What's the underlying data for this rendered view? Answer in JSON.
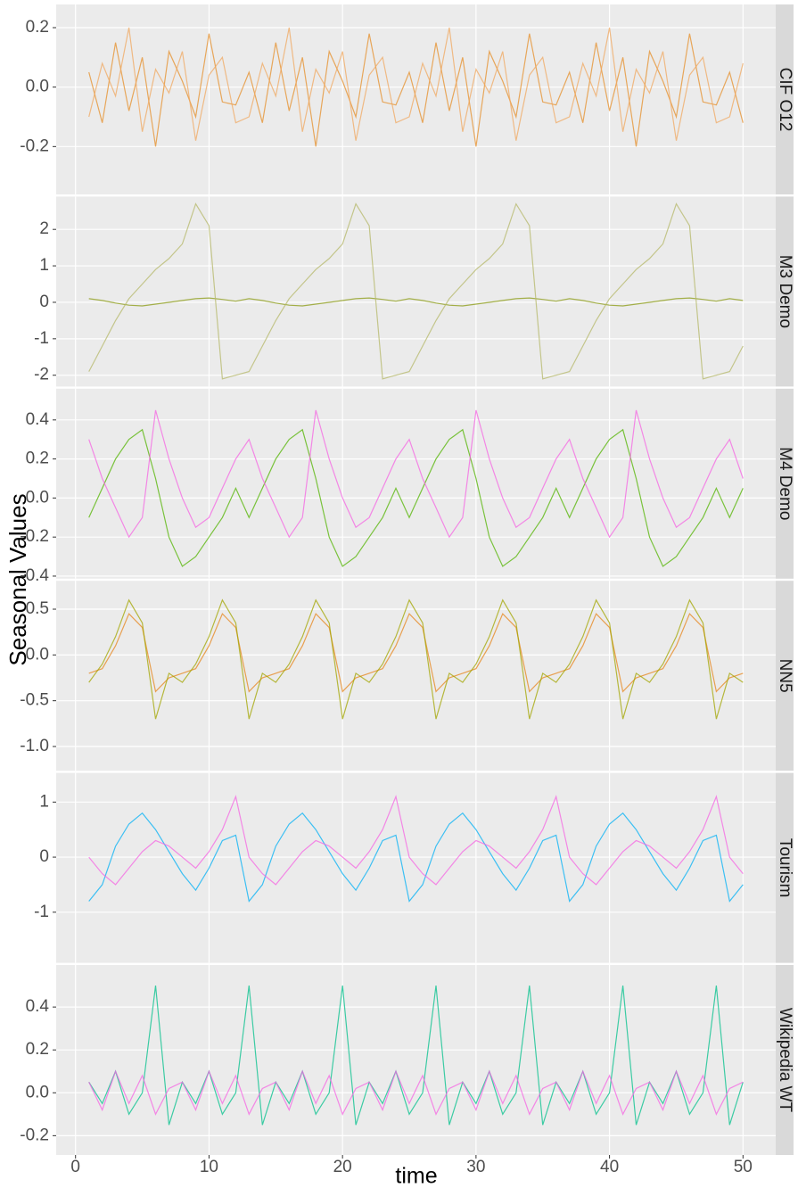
{
  "chart_data": {
    "type": "line",
    "xlabel": "time",
    "ylabel": "Seasonal Values",
    "x": [
      1,
      2,
      3,
      4,
      5,
      6,
      7,
      8,
      9,
      10,
      11,
      12,
      13,
      14,
      15,
      16,
      17,
      18,
      19,
      20,
      21,
      22,
      23,
      24,
      25,
      26,
      27,
      28,
      29,
      30,
      31,
      32,
      33,
      34,
      35,
      36,
      37,
      38,
      39,
      40,
      41,
      42,
      43,
      44,
      45,
      46,
      47,
      48,
      49,
      50
    ],
    "xlim": [
      -1.45,
      52.45
    ],
    "xticks": [
      0,
      10,
      20,
      30,
      40,
      50
    ],
    "grid": true,
    "panels": [
      {
        "strip": "CIF O12",
        "ylim": [
          -0.361,
          0.278
        ],
        "yticks": [
          -0.2,
          {
            "value": 0,
            "label": "0.0"
          },
          0.2
        ],
        "series": [
          {
            "color": "#e58f2a",
            "values": [
              0.05,
              -0.12,
              0.15,
              -0.08,
              0.1,
              -0.2,
              0.12,
              0.02,
              -0.1,
              0.18,
              -0.05,
              -0.06,
              0.05,
              -0.12,
              0.15,
              -0.08,
              0.1,
              -0.2,
              0.12,
              0.02,
              -0.1,
              0.18,
              -0.05,
              -0.06,
              0.05,
              -0.12,
              0.15,
              -0.08,
              0.1,
              -0.2,
              0.12,
              0.02,
              -0.1,
              0.18,
              -0.05,
              -0.06,
              0.05,
              -0.12,
              0.15,
              -0.08,
              0.1,
              -0.2,
              0.12,
              0.02,
              -0.1,
              0.18,
              -0.05,
              -0.06,
              0.05,
              -0.12
            ]
          },
          {
            "color": "#f0a860",
            "values": [
              -0.1,
              0.08,
              -0.03,
              0.2,
              -0.15,
              0.06,
              -0.02,
              0.12,
              -0.18,
              0.04,
              0.1,
              -0.12,
              -0.1,
              0.08,
              -0.03,
              0.2,
              -0.15,
              0.06,
              -0.02,
              0.12,
              -0.18,
              0.04,
              0.1,
              -0.12,
              -0.1,
              0.08,
              -0.03,
              0.2,
              -0.15,
              0.06,
              -0.02,
              0.12,
              -0.18,
              0.04,
              0.1,
              -0.12,
              -0.1,
              0.08,
              -0.03,
              0.2,
              -0.15,
              0.06,
              -0.02,
              0.12,
              -0.18,
              0.04,
              0.1,
              -0.12,
              -0.1,
              0.08
            ]
          }
        ]
      },
      {
        "strip": "M3 Demo",
        "ylim": [
          -2.31,
          2.9
        ],
        "yticks": [
          -2,
          -1,
          0,
          1,
          2
        ],
        "series": [
          {
            "color": "#8a9a10",
            "values": [
              0.1,
              0.05,
              -0.02,
              -0.08,
              -0.1,
              -0.05,
              0,
              0.05,
              0.1,
              0.12,
              0.08,
              0.03,
              0.1,
              0.05,
              -0.02,
              -0.08,
              -0.1,
              -0.05,
              0,
              0.05,
              0.1,
              0.12,
              0.08,
              0.03,
              0.1,
              0.05,
              -0.02,
              -0.08,
              -0.1,
              -0.05,
              0,
              0.05,
              0.1,
              0.12,
              0.08,
              0.03,
              0.1,
              0.05,
              -0.02,
              -0.08,
              -0.1,
              -0.05,
              0,
              0.05,
              0.1,
              0.12,
              0.08,
              0.03,
              0.1,
              0.05
            ]
          },
          {
            "color": "#b5b86a",
            "values": [
              -1.9,
              -1.2,
              -0.5,
              0.1,
              0.5,
              0.9,
              1.2,
              1.6,
              2.7,
              2.1,
              -2.1,
              -2.0,
              -1.9,
              -1.2,
              -0.5,
              0.1,
              0.5,
              0.9,
              1.2,
              1.6,
              2.7,
              2.1,
              -2.1,
              -2.0,
              -1.9,
              -1.2,
              -0.5,
              0.1,
              0.5,
              0.9,
              1.2,
              1.6,
              2.7,
              2.1,
              -2.1,
              -2.0,
              -1.9,
              -1.2,
              -0.5,
              0.1,
              0.5,
              0.9,
              1.2,
              1.6,
              2.7,
              2.1,
              -2.1,
              -2.0,
              -1.9,
              -1.2
            ]
          }
        ]
      },
      {
        "strip": "M4 Demo",
        "ylim": [
          -0.413,
          0.56
        ],
        "yticks": [
          -0.4,
          -0.2,
          {
            "value": 0,
            "label": "0.0"
          },
          0.2,
          0.4
        ],
        "series": [
          {
            "color": "#53b400",
            "values": [
              -0.1,
              0.05,
              0.2,
              0.3,
              0.35,
              0.1,
              -0.2,
              -0.35,
              -0.3,
              -0.2,
              -0.1,
              0.05,
              -0.1,
              0.05,
              0.2,
              0.3,
              0.35,
              0.1,
              -0.2,
              -0.35,
              -0.3,
              -0.2,
              -0.1,
              0.05,
              -0.1,
              0.05,
              0.2,
              0.3,
              0.35,
              0.1,
              -0.2,
              -0.35,
              -0.3,
              -0.2,
              -0.1,
              0.05,
              -0.1,
              0.05,
              0.2,
              0.3,
              0.35,
              0.1,
              -0.2,
              -0.35,
              -0.3,
              -0.2,
              -0.1,
              0.05,
              -0.1,
              0.05
            ]
          },
          {
            "color": "#f564e3",
            "values": [
              0.3,
              0.1,
              -0.05,
              -0.2,
              -0.1,
              0.45,
              0.2,
              0,
              -0.15,
              -0.1,
              0.05,
              0.2,
              0.3,
              0.1,
              -0.05,
              -0.2,
              -0.1,
              0.45,
              0.2,
              0,
              -0.15,
              -0.1,
              0.05,
              0.2,
              0.3,
              0.1,
              -0.05,
              -0.2,
              -0.1,
              0.45,
              0.2,
              0,
              -0.15,
              -0.1,
              0.05,
              0.2,
              0.3,
              0.1,
              -0.05,
              -0.2,
              -0.1,
              0.45,
              0.2,
              0,
              -0.15,
              -0.1,
              0.05,
              0.2,
              0.3,
              0.1
            ]
          }
        ]
      },
      {
        "strip": "NN5",
        "ylim": [
          -1.265,
          0.81
        ],
        "yticks": [
          {
            "value": -1,
            "label": "-1.0"
          },
          -0.5,
          {
            "value": 0,
            "label": "0.0"
          },
          0.5
        ],
        "series": [
          {
            "color": "#e7861b",
            "values": [
              -0.2,
              -0.15,
              0.1,
              0.45,
              0.3,
              -0.4,
              -0.25,
              -0.2,
              -0.15,
              0.1,
              0.45,
              0.3,
              -0.4,
              -0.25,
              -0.2,
              -0.15,
              0.1,
              0.45,
              0.3,
              -0.4,
              -0.25,
              -0.2,
              -0.15,
              0.1,
              0.45,
              0.3,
              -0.4,
              -0.25,
              -0.2,
              -0.15,
              0.1,
              0.45,
              0.3,
              -0.4,
              -0.25,
              -0.2,
              -0.15,
              0.1,
              0.45,
              0.3,
              -0.4,
              -0.25,
              -0.2,
              -0.15,
              0.1,
              0.45,
              0.3,
              -0.4,
              -0.25,
              -0.2
            ]
          },
          {
            "color": "#a3a500",
            "values": [
              -0.3,
              -0.1,
              0.2,
              0.6,
              0.35,
              -0.7,
              -0.2,
              -0.3,
              -0.1,
              0.2,
              0.6,
              0.35,
              -0.7,
              -0.2,
              -0.3,
              -0.1,
              0.2,
              0.6,
              0.35,
              -0.7,
              -0.2,
              -0.3,
              -0.1,
              0.2,
              0.6,
              0.35,
              -0.7,
              -0.2,
              -0.3,
              -0.1,
              0.2,
              0.6,
              0.35,
              -0.7,
              -0.2,
              -0.3,
              -0.1,
              0.2,
              0.6,
              0.35,
              -0.7,
              -0.2,
              -0.3,
              -0.1,
              0.2,
              0.6,
              0.35,
              -0.7,
              -0.2,
              -0.3
            ]
          }
        ]
      },
      {
        "strip": "Tourism",
        "ylim": [
          -1.92,
          1.53
        ],
        "yticks": [
          -1,
          0,
          1
        ],
        "series": [
          {
            "color": "#00b0f6",
            "values": [
              -0.8,
              -0.5,
              0.2,
              0.6,
              0.8,
              0.5,
              0.1,
              -0.3,
              -0.6,
              -0.2,
              0.3,
              0.4,
              -0.8,
              -0.5,
              0.2,
              0.6,
              0.8,
              0.5,
              0.1,
              -0.3,
              -0.6,
              -0.2,
              0.3,
              0.4,
              -0.8,
              -0.5,
              0.2,
              0.6,
              0.8,
              0.5,
              0.1,
              -0.3,
              -0.6,
              -0.2,
              0.3,
              0.4,
              -0.8,
              -0.5,
              0.2,
              0.6,
              0.8,
              0.5,
              0.1,
              -0.3,
              -0.6,
              -0.2,
              0.3,
              0.4,
              -0.8,
              -0.5
            ]
          },
          {
            "color": "#f564e3",
            "values": [
              0,
              -0.3,
              -0.5,
              -0.2,
              0.1,
              0.3,
              0.2,
              0,
              -0.2,
              0.1,
              0.5,
              1.1,
              0,
              -0.3,
              -0.5,
              -0.2,
              0.1,
              0.3,
              0.2,
              0,
              -0.2,
              0.1,
              0.5,
              1.1,
              0,
              -0.3,
              -0.5,
              -0.2,
              0.1,
              0.3,
              0.2,
              0,
              -0.2,
              0.1,
              0.5,
              1.1,
              0,
              -0.3,
              -0.5,
              -0.2,
              0.1,
              0.3,
              0.2,
              0,
              -0.2,
              0.1,
              0.5,
              1.1,
              0,
              -0.3
            ]
          }
        ]
      },
      {
        "strip": "Wikipedia WT",
        "ylim": [
          -0.29,
          0.596
        ],
        "yticks": [
          -0.2,
          {
            "value": 0,
            "label": "0.0"
          },
          0.2,
          0.4
        ],
        "series": [
          {
            "color": "#00c08b",
            "values": [
              0.05,
              -0.05,
              0.1,
              -0.1,
              0,
              0.5,
              -0.15,
              0.05,
              -0.05,
              0.1,
              -0.1,
              0,
              0.5,
              -0.15,
              0.05,
              -0.05,
              0.1,
              -0.1,
              0,
              0.5,
              -0.15,
              0.05,
              -0.05,
              0.1,
              -0.1,
              0,
              0.5,
              -0.15,
              0.05,
              -0.05,
              0.1,
              -0.1,
              0,
              0.5,
              -0.15,
              0.05,
              -0.05,
              0.1,
              -0.1,
              0,
              0.5,
              -0.15,
              0.05,
              -0.05,
              0.1,
              -0.1,
              0,
              0.5,
              -0.15,
              0.05
            ]
          },
          {
            "color": "#f564e3",
            "values": [
              0.05,
              -0.08,
              0.1,
              -0.05,
              0.08,
              -0.1,
              0.02,
              0.05,
              -0.08,
              0.1,
              -0.05,
              0.08,
              -0.1,
              0.02,
              0.05,
              -0.08,
              0.1,
              -0.05,
              0.08,
              -0.1,
              0.02,
              0.05,
              -0.08,
              0.1,
              -0.05,
              0.08,
              -0.1,
              0.02,
              0.05,
              -0.08,
              0.1,
              -0.05,
              0.08,
              -0.1,
              0.02,
              0.05,
              -0.08,
              0.1,
              -0.05,
              0.08,
              -0.1,
              0.02,
              0.05,
              -0.08,
              0.1,
              -0.05,
              0.08,
              -0.1,
              0.02,
              0.05
            ]
          }
        ]
      }
    ]
  }
}
